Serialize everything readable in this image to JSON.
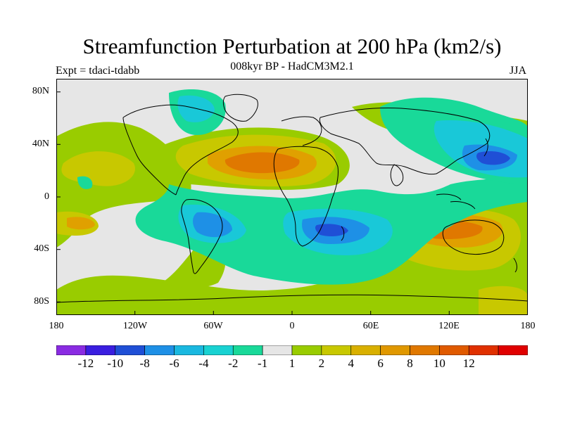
{
  "title": "Streamfunction Perturbation at 200 hPa (km2/s)",
  "subtitle": "008kyr BP - HadCM3M2.1",
  "experiment": "Expt = tdaci-tdabb",
  "season": "JJA",
  "map": {
    "projection": "cylindrical equidistant",
    "lat_labels": [
      "80N",
      "40N",
      "0",
      "40S",
      "80S"
    ],
    "lon_labels": [
      "180",
      "120W",
      "60W",
      "0",
      "60E",
      "120E",
      "180"
    ],
    "background_color": "#e6e6e6",
    "coast_color": "#000000"
  },
  "colorbar": {
    "colors": [
      "#8a2be2",
      "#3a1ee0",
      "#1f4fd6",
      "#1e90e6",
      "#1ab8e0",
      "#19d2d2",
      "#19d999",
      "#e6e6e6",
      "#99cc00",
      "#c8c800",
      "#d9b000",
      "#e09800",
      "#e07800",
      "#e05a00",
      "#e03000",
      "#e00000"
    ],
    "tick_labels": [
      "-12",
      "-10",
      "-8",
      "-6",
      "-4",
      "-2",
      "-1",
      "1",
      "2",
      "4",
      "6",
      "8",
      "10",
      "12"
    ]
  },
  "features": [
    {
      "name": "north-atlantic-saharan-high",
      "lon": -30,
      "lat": 28,
      "value": 8
    },
    {
      "name": "west-pacific-low",
      "lon": 160,
      "lat": 25,
      "value": -10
    },
    {
      "name": "australia-indian-ocean-high",
      "lon": 115,
      "lat": -25,
      "value": 8
    },
    {
      "name": "south-africa-low",
      "lon": 35,
      "lat": -25,
      "value": -6
    },
    {
      "name": "south-america-low",
      "lon": -60,
      "lat": -25,
      "value": -4
    },
    {
      "name": "south-pacific-high",
      "lon": -165,
      "lat": -20,
      "value": 6
    }
  ]
}
